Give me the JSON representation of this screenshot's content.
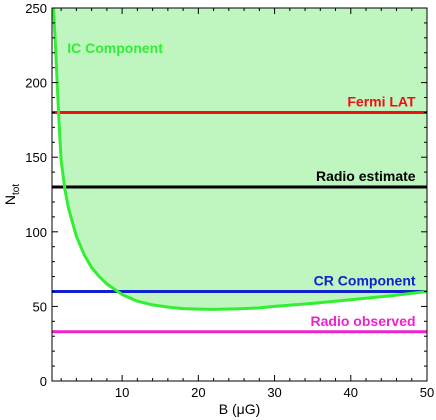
{
  "chart_data": {
    "type": "line",
    "xlabel": "B (μG)",
    "ylabel": "N",
    "ylabel_sub": "tot",
    "xlim": [
      0.8,
      50
    ],
    "ylim": [
      0,
      250
    ],
    "x_ticks": [
      10,
      20,
      30,
      40,
      50
    ],
    "y_ticks": [
      0,
      50,
      100,
      150,
      200,
      250
    ],
    "x_tick_labels": [
      "10",
      "20",
      "30",
      "40",
      "50"
    ],
    "y_tick_labels": [
      "0",
      "50",
      "100",
      "150",
      "200",
      "250"
    ],
    "grid": false,
    "series": [
      {
        "name": "IC Component",
        "color": "#33ee33",
        "fill": "#bff5bf",
        "shaded_above": true,
        "x": [
          1.0,
          1.3,
          1.7,
          2.0,
          2.5,
          3,
          4,
          5,
          6,
          7,
          8,
          10,
          12,
          14,
          16,
          18,
          20,
          22,
          25,
          28,
          30,
          35,
          40,
          45,
          50
        ],
        "y": [
          250,
          220,
          175,
          148,
          128,
          115,
          97,
          85,
          76,
          70,
          65,
          58,
          53.5,
          51,
          49.5,
          48.5,
          48.2,
          48,
          48.3,
          49,
          50,
          52,
          54.5,
          57,
          60
        ]
      },
      {
        "name": "Fermi LAT",
        "color": "#ee1111",
        "type": "hline",
        "y": 180
      },
      {
        "name": "Radio estimate",
        "color": "#000000",
        "type": "hline",
        "y": 130
      },
      {
        "name": "CR Component",
        "color": "#1122cc",
        "type": "hline",
        "y": 60
      },
      {
        "name": "Radio observed",
        "color": "#ee22cc",
        "type": "hline",
        "y": 33
      }
    ],
    "annotations": [
      {
        "text": "IC Component",
        "color": "#33ee33",
        "x": 2.8,
        "y": 220,
        "anchor": "start"
      },
      {
        "text": "Fermi LAT",
        "color": "#ee1111",
        "x": 48.5,
        "y": 184,
        "anchor": "end"
      },
      {
        "text": "Radio estimate",
        "color": "#000000",
        "x": 48.5,
        "y": 134,
        "anchor": "end"
      },
      {
        "text": "CR Component",
        "color": "#1122cc",
        "x": 48.5,
        "y": 64,
        "anchor": "end"
      },
      {
        "text": "Radio observed",
        "color": "#ee22cc",
        "x": 48.5,
        "y": 37,
        "anchor": "end"
      }
    ]
  }
}
